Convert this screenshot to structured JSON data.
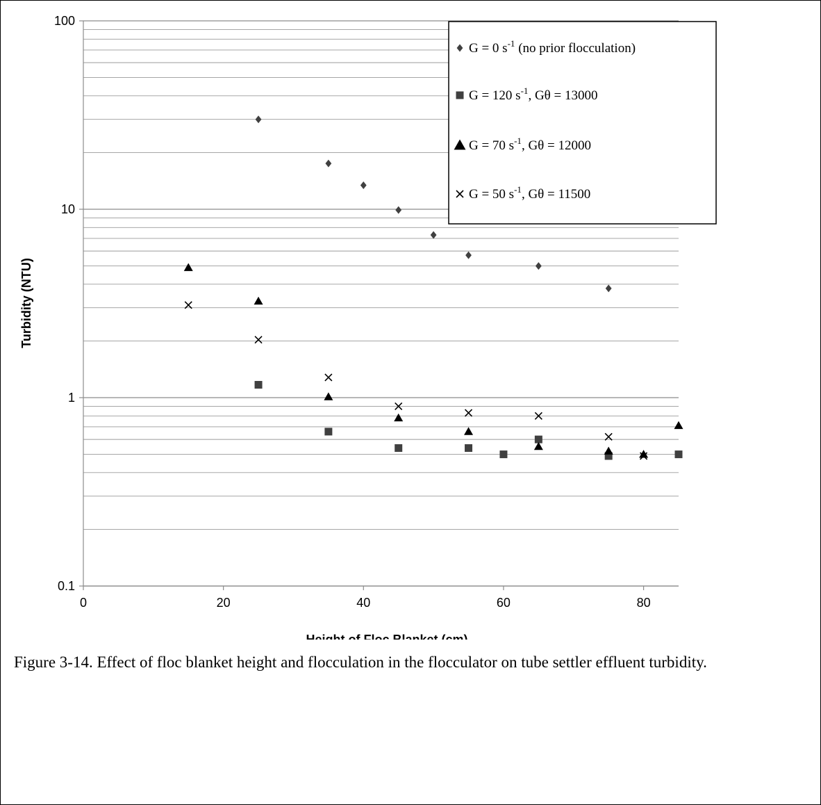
{
  "chart_data": {
    "type": "scatter",
    "title": "",
    "xlabel": "Height of Floc Blanket (cm)",
    "ylabel": "Turbidity (NTU)",
    "xlim": [
      0,
      85
    ],
    "ylim": [
      0.1,
      100
    ],
    "y_scale": "log",
    "x_ticks": [
      "0",
      "20",
      "40",
      "60",
      "80"
    ],
    "y_ticks": [
      "0.1",
      "1",
      "10",
      "100"
    ],
    "grid": "horizontal major and minor",
    "legend_position": "top-right",
    "series": [
      {
        "name": "G = 0 s",
        "legend_sup": "-1",
        "legend_rest": " (no prior flocculation)",
        "marker": "diamond",
        "color": "#404040",
        "points": [
          [
            25,
            30
          ],
          [
            35,
            17.5
          ],
          [
            40,
            13.4
          ],
          [
            45,
            9.9
          ],
          [
            50,
            7.3
          ],
          [
            55,
            5.7
          ],
          [
            65,
            5.0
          ],
          [
            75,
            3.8
          ]
        ]
      },
      {
        "name": "G = 120 s",
        "legend_sup": "-1",
        "legend_rest": ", Gθ = 13000",
        "marker": "square",
        "color": "#404040",
        "points": [
          [
            25,
            1.17
          ],
          [
            35,
            0.66
          ],
          [
            45,
            0.54
          ],
          [
            55,
            0.54
          ],
          [
            60,
            0.5
          ],
          [
            65,
            0.6
          ],
          [
            75,
            0.49
          ],
          [
            85,
            0.5
          ]
        ]
      },
      {
        "name": "G = 70 s",
        "legend_sup": "-1",
        "legend_rest": ", Gθ = 12000",
        "marker": "triangle",
        "color": "#000000",
        "points": [
          [
            15,
            4.9
          ],
          [
            25,
            3.25
          ],
          [
            35,
            1.01
          ],
          [
            45,
            0.78
          ],
          [
            55,
            0.66
          ],
          [
            65,
            0.55
          ],
          [
            75,
            0.52
          ],
          [
            80,
            0.5
          ],
          [
            85,
            0.71
          ]
        ]
      },
      {
        "name": "G = 50 s",
        "legend_sup": "-1",
        "legend_rest": ", Gθ = 11500",
        "marker": "cross",
        "color": "#000000",
        "points": [
          [
            15,
            3.1
          ],
          [
            25,
            2.03
          ],
          [
            35,
            1.28
          ],
          [
            45,
            0.9
          ],
          [
            55,
            0.83
          ],
          [
            65,
            0.8
          ],
          [
            75,
            0.62
          ],
          [
            80,
            0.49
          ]
        ]
      }
    ]
  },
  "caption": "Figure 3-14. Effect of floc blanket height and  flocculation in the flocculator on tube settler effluent turbidity."
}
